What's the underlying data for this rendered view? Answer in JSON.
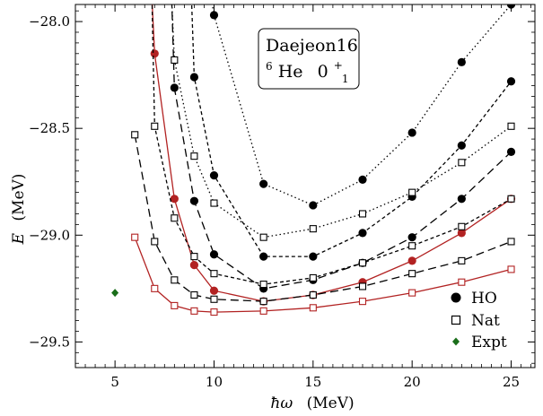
{
  "chart_data": {
    "type": "line",
    "title": "",
    "xlabel": "ħω (MeV)",
    "xlabel_symbol": "ħω",
    "xlabel_unit": "(MeV)",
    "ylabel": "E (MeV)",
    "ylabel_symbol": "E",
    "ylabel_unit": "(MeV)",
    "xlim": [
      3,
      26.2
    ],
    "ylim": [
      -29.62,
      -27.92
    ],
    "xticks": [
      5,
      10,
      15,
      20,
      25
    ],
    "xtick_labels": [
      "5",
      "10",
      "15",
      "20",
      "25"
    ],
    "yticks": [
      -28.0,
      -28.5,
      -29.0,
      -29.5
    ],
    "ytick_labels": [
      "−28.0",
      "−28.5",
      "−29.0",
      "−29.5"
    ],
    "annotation": {
      "line1": "Daejeon16",
      "line2_sup": "6",
      "line2_element": "He",
      "line2_state": "0",
      "line2_state_sup": "+",
      "line2_state_sub": "1"
    },
    "legend": {
      "placement": "bottom-right",
      "entries": [
        {
          "label": "HO",
          "marker": "filled-circle"
        },
        {
          "label": "Nat",
          "marker": "open-square"
        },
        {
          "label": "Expt",
          "marker": "green-diamond"
        }
      ]
    },
    "colors": {
      "converged": "#b22222",
      "other": "#000000",
      "expt": "#1a6e1a"
    },
    "series": [
      {
        "basis": "HO",
        "style": "dotted",
        "color": "#000000",
        "entry": "top",
        "x": [
          10,
          12.5,
          15,
          17.5,
          20,
          22.5,
          25
        ],
        "y": [
          -27.97,
          -28.76,
          -28.86,
          -28.74,
          -28.52,
          -28.19,
          -27.92
        ]
      },
      {
        "basis": "HO",
        "style": "short-dash",
        "color": "#000000",
        "entry": "top",
        "x": [
          9,
          10,
          12.5,
          15,
          17.5,
          20,
          22.5,
          25
        ],
        "y": [
          -28.26,
          -28.72,
          -29.1,
          -29.1,
          -28.99,
          -28.82,
          -28.58,
          -28.28
        ]
      },
      {
        "basis": "HO",
        "style": "long-dash",
        "color": "#000000",
        "entry": "top",
        "x": [
          8,
          9,
          10,
          12.5,
          15,
          17.5,
          20,
          22.5,
          25
        ],
        "y": [
          -28.31,
          -28.84,
          -29.09,
          -29.25,
          -29.21,
          -29.13,
          -29.01,
          -28.83,
          -28.61
        ]
      },
      {
        "basis": "HO",
        "style": "solid",
        "color": "#b22222",
        "entry": "top",
        "x": [
          7,
          8,
          9,
          10,
          12.5,
          15,
          17.5,
          20,
          22.5,
          25
        ],
        "y": [
          -28.15,
          -28.83,
          -29.14,
          -29.26,
          -29.31,
          -29.28,
          -29.22,
          -29.12,
          -28.99,
          -28.83
        ]
      },
      {
        "basis": "Nat",
        "style": "dotted",
        "color": "#000000",
        "entry": "top",
        "x": [
          8,
          9,
          10,
          12.5,
          15,
          17.5,
          20,
          22.5,
          25
        ],
        "y": [
          -28.18,
          -28.63,
          -28.85,
          -29.01,
          -28.97,
          -28.9,
          -28.8,
          -28.66,
          -28.49
        ]
      },
      {
        "basis": "Nat",
        "style": "short-dash",
        "color": "#000000",
        "entry": "top",
        "x": [
          7,
          8,
          9,
          10,
          12.5,
          15,
          17.5,
          20,
          22.5,
          25
        ],
        "y": [
          -28.49,
          -28.92,
          -29.1,
          -29.18,
          -29.23,
          -29.2,
          -29.13,
          -29.05,
          -28.96,
          -28.83
        ]
      },
      {
        "basis": "Nat",
        "style": "long-dash",
        "color": "#000000",
        "entry": "none",
        "x": [
          6,
          7,
          8,
          9,
          10,
          12.5,
          15,
          17.5,
          20,
          22.5,
          25
        ],
        "y": [
          -28.53,
          -29.03,
          -29.21,
          -29.28,
          -29.3,
          -29.31,
          -29.28,
          -29.24,
          -29.18,
          -29.12,
          -29.03
        ]
      },
      {
        "basis": "Nat",
        "style": "solid",
        "color": "#b22222",
        "entry": "none",
        "x": [
          6,
          7,
          8,
          9,
          10,
          12.5,
          15,
          17.5,
          20,
          22.5,
          25
        ],
        "y": [
          -29.01,
          -29.25,
          -29.33,
          -29.355,
          -29.36,
          -29.355,
          -29.34,
          -29.31,
          -29.27,
          -29.22,
          -29.16
        ]
      }
    ],
    "expt": {
      "x": 5,
      "y": -29.27
    }
  }
}
